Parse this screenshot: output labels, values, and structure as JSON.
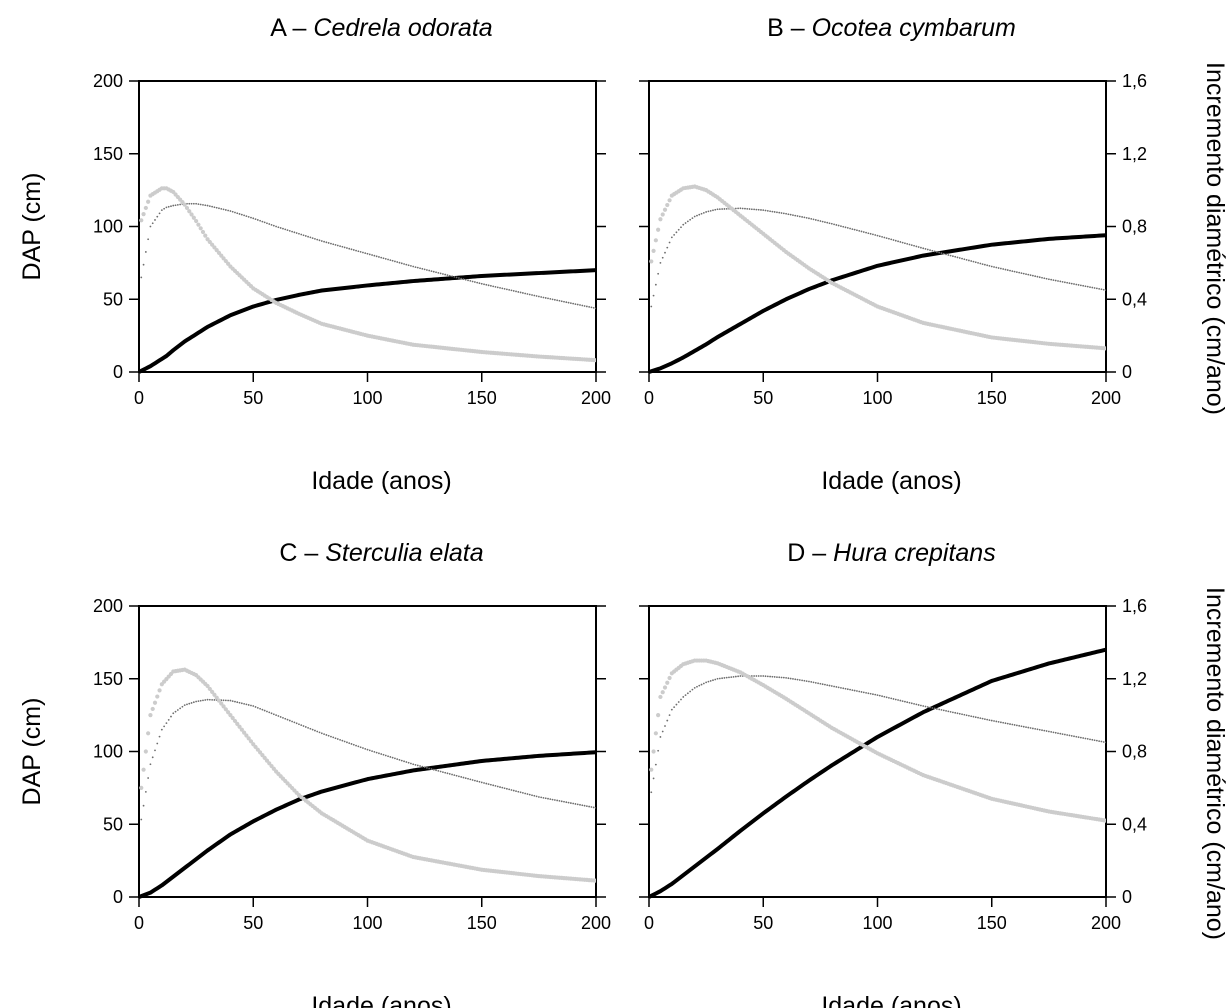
{
  "figure": {
    "xlabel": "Idade (anos)",
    "ylabel_left": "DAP (cm)",
    "ylabel_right": "Incremento diamétrico (cm/ano)"
  },
  "chart_data": [
    {
      "type": "line",
      "panel": "A",
      "title_prefix": "A – ",
      "title_species": "Cedrela odorata",
      "xlabel": "Idade (anos)",
      "ylabel": "DAP (cm)",
      "ylabel_right": "",
      "xlim": [
        0,
        200
      ],
      "ylim": [
        0,
        200
      ],
      "ylim_right": [
        0,
        1.6
      ],
      "xticks": [
        "0",
        "50",
        "100",
        "150",
        "200"
      ],
      "yticks": [
        "0",
        "50",
        "100",
        "150",
        "200"
      ],
      "yticks_right": [],
      "x": [
        0,
        5,
        10,
        12,
        15,
        20,
        25,
        30,
        40,
        50,
        60,
        70,
        80,
        100,
        120,
        150,
        175,
        200
      ],
      "series": [
        {
          "style": "solid-thick",
          "color": "#000000",
          "axis": "left",
          "values": [
            0,
            4,
            9,
            11,
            15,
            21,
            26,
            31,
            39,
            45,
            49.5,
            53,
            56,
            59.5,
            62.5,
            66,
            68,
            70
          ]
        },
        {
          "style": "dotted-thin",
          "color": "#6e6e6e",
          "axis": "right",
          "values": [
            0.45,
            0.8,
            0.89,
            0.905,
            0.915,
            0.925,
            0.925,
            0.915,
            0.885,
            0.845,
            0.8,
            0.76,
            0.72,
            0.65,
            0.58,
            0.485,
            0.415,
            0.35
          ]
        },
        {
          "style": "dotted-thick-light",
          "color": "#cccccc",
          "axis": "right",
          "values": [
            0.8,
            0.97,
            1.01,
            1.01,
            0.99,
            0.92,
            0.83,
            0.73,
            0.58,
            0.46,
            0.38,
            0.32,
            0.265,
            0.2,
            0.15,
            0.11,
            0.085,
            0.065
          ]
        }
      ]
    },
    {
      "type": "line",
      "panel": "B",
      "title_prefix": "B – ",
      "title_species": "Ocotea cymbarum",
      "xlabel": "Idade (anos)",
      "ylabel": "",
      "ylabel_right": "Incremento diamétrico (cm/ano)",
      "xlim": [
        0,
        200
      ],
      "ylim": [
        0,
        200
      ],
      "ylim_right": [
        0,
        1.6
      ],
      "xticks": [
        "0",
        "50",
        "100",
        "150",
        "200"
      ],
      "yticks": [],
      "yticks_right": [
        "0",
        "0,4",
        "0,8",
        "1,2",
        "1,6"
      ],
      "x": [
        0,
        5,
        10,
        15,
        20,
        25,
        30,
        40,
        50,
        60,
        70,
        80,
        100,
        120,
        150,
        175,
        200
      ],
      "series": [
        {
          "style": "solid-thick",
          "color": "#000000",
          "axis": "left",
          "values": [
            0,
            2.5,
            6,
            10,
            14.5,
            19,
            24,
            33,
            42,
            50,
            57,
            63,
            73,
            80,
            87.5,
            91.5,
            94
          ]
        },
        {
          "style": "dotted-thin",
          "color": "#6e6e6e",
          "axis": "right",
          "values": [
            0.3,
            0.6,
            0.74,
            0.81,
            0.855,
            0.88,
            0.895,
            0.9,
            0.89,
            0.87,
            0.845,
            0.815,
            0.75,
            0.68,
            0.58,
            0.51,
            0.45
          ]
        },
        {
          "style": "dotted-thick-light",
          "color": "#cccccc",
          "axis": "right",
          "values": [
            0.55,
            0.84,
            0.97,
            1.01,
            1.02,
            1.0,
            0.96,
            0.86,
            0.76,
            0.66,
            0.57,
            0.49,
            0.36,
            0.27,
            0.19,
            0.155,
            0.13
          ]
        }
      ]
    },
    {
      "type": "line",
      "panel": "C",
      "title_prefix": "C – ",
      "title_species": "Sterculia elata",
      "xlabel": "Idade (anos)",
      "ylabel": "DAP (cm)",
      "ylabel_right": "",
      "xlim": [
        0,
        200
      ],
      "ylim": [
        0,
        200
      ],
      "ylim_right": [
        0,
        1.6
      ],
      "xticks": [
        "0",
        "50",
        "100",
        "150",
        "200"
      ],
      "yticks": [
        "0",
        "50",
        "100",
        "150",
        "200"
      ],
      "yticks_right": [],
      "x": [
        0,
        5,
        10,
        15,
        20,
        25,
        30,
        40,
        50,
        60,
        70,
        80,
        100,
        120,
        150,
        175,
        200
      ],
      "series": [
        {
          "style": "solid-thick",
          "color": "#000000",
          "axis": "left",
          "values": [
            0,
            3,
            8,
            14,
            20,
            26,
            32,
            43,
            52,
            60,
            67,
            72.5,
            81,
            87,
            93.5,
            97,
            99.5
          ]
        },
        {
          "style": "dotted-thin",
          "color": "#6e6e6e",
          "axis": "right",
          "values": [
            0.35,
            0.73,
            0.92,
            1.01,
            1.055,
            1.075,
            1.085,
            1.08,
            1.05,
            1.0,
            0.95,
            0.9,
            0.81,
            0.73,
            0.63,
            0.55,
            0.49
          ]
        },
        {
          "style": "dotted-thick-light",
          "color": "#cccccc",
          "axis": "right",
          "values": [
            0.5,
            1.0,
            1.17,
            1.24,
            1.25,
            1.22,
            1.16,
            1.0,
            0.84,
            0.69,
            0.56,
            0.46,
            0.31,
            0.22,
            0.15,
            0.115,
            0.09
          ]
        }
      ]
    },
    {
      "type": "line",
      "panel": "D",
      "title_prefix": "D – ",
      "title_species": "Hura crepitans",
      "xlabel": "Idade (anos)",
      "ylabel": "",
      "ylabel_right": "Incremento diamétrico (cm/ano)",
      "xlim": [
        0,
        200
      ],
      "ylim": [
        0,
        200
      ],
      "ylim_right": [
        0,
        1.6
      ],
      "xticks": [
        "0",
        "50",
        "100",
        "150",
        "200"
      ],
      "yticks": [],
      "yticks_right": [
        "0",
        "0,4",
        "0,8",
        "1,2",
        "1,6"
      ],
      "x": [
        0,
        5,
        10,
        15,
        20,
        25,
        30,
        40,
        50,
        60,
        70,
        80,
        100,
        120,
        150,
        175,
        200
      ],
      "series": [
        {
          "style": "solid-thick",
          "color": "#000000",
          "axis": "left",
          "values": [
            0,
            4,
            9,
            15,
            21,
            27,
            33,
            45.5,
            57.5,
            69,
            80,
            90.5,
            110,
            127,
            148.5,
            160.5,
            170
          ]
        },
        {
          "style": "dotted-thin",
          "color": "#6e6e6e",
          "axis": "right",
          "values": [
            0.5,
            0.88,
            1.03,
            1.1,
            1.15,
            1.18,
            1.2,
            1.215,
            1.215,
            1.205,
            1.185,
            1.16,
            1.11,
            1.05,
            0.97,
            0.91,
            0.85
          ]
        },
        {
          "style": "dotted-thick-light",
          "color": "#cccccc",
          "axis": "right",
          "values": [
            0.6,
            1.1,
            1.23,
            1.28,
            1.3,
            1.3,
            1.285,
            1.235,
            1.165,
            1.09,
            1.01,
            0.93,
            0.79,
            0.67,
            0.54,
            0.47,
            0.42
          ]
        }
      ]
    }
  ]
}
